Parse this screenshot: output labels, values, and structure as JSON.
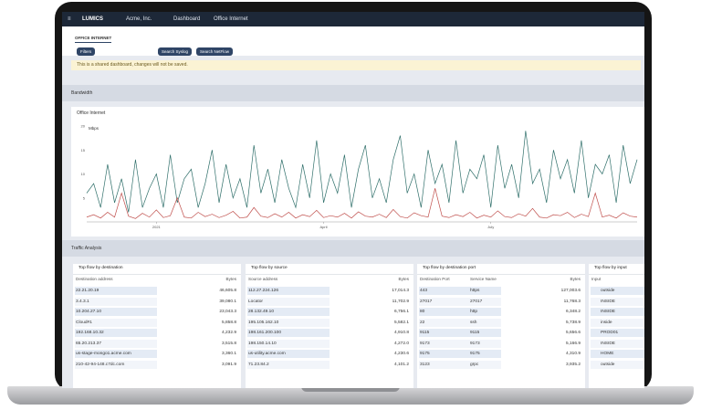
{
  "nav": {
    "brand": "LUMICS",
    "org": "Acme, Inc.",
    "menu": "Dashboard",
    "page": "Office Internet"
  },
  "tab": "OFFICE INTERNET",
  "buttons": [
    "Filters",
    "Search Syslog",
    "Search NetFlow"
  ],
  "banner": "This is a shared dashboard, changes will not be saved.",
  "sections": [
    "Bandwidth",
    "Traffic Analysis"
  ],
  "chart_data": {
    "type": "line",
    "title": "Office Internet",
    "y_label": "Mbps",
    "ylim": [
      0,
      20
    ],
    "yticks": [
      5,
      10,
      15,
      20
    ],
    "xlim": [
      0,
      79
    ],
    "xticks": [
      {
        "value": 10,
        "label": "2021"
      },
      {
        "value": 34,
        "label": "April"
      },
      {
        "value": 58,
        "label": "July"
      }
    ],
    "grid": false,
    "series": [
      {
        "color": "#2f6f6a",
        "values": [
          6,
          8,
          3,
          12,
          4,
          9,
          2,
          13,
          3,
          7,
          10,
          3,
          14,
          4,
          9,
          11,
          3,
          8,
          15,
          4,
          12,
          5,
          9,
          3,
          16,
          6,
          11,
          4,
          13,
          7,
          3,
          12,
          5,
          17,
          4,
          10,
          6,
          14,
          3,
          11,
          16,
          5,
          9,
          4,
          13,
          18,
          6,
          10,
          3,
          15,
          8,
          12,
          4,
          17,
          6,
          11,
          9,
          14,
          3,
          16,
          7,
          12,
          5,
          19,
          8,
          11,
          4,
          15,
          9,
          13,
          6,
          17,
          5,
          12,
          10,
          14,
          4,
          16,
          8,
          13
        ]
      },
      {
        "color": "#c0504d",
        "values": [
          1,
          1.5,
          0.8,
          2,
          1,
          6,
          1.2,
          0.7,
          1.8,
          1,
          2.5,
          0.9,
          1.3,
          5,
          1,
          0.8,
          2,
          1.1,
          1.6,
          0.9,
          1.4,
          2.2,
          0.8,
          1,
          3,
          1.2,
          0.9,
          1.7,
          1,
          2,
          0.8,
          1.5,
          1.1,
          2.4,
          0.9,
          1.3,
          1,
          1.8,
          0.8,
          2.1,
          1.2,
          1,
          1.6,
          0.9,
          2.6,
          1.1,
          0.8,
          1.9,
          1.3,
          1,
          7,
          1.2,
          0.9,
          1.5,
          1.1,
          2,
          0.8,
          1.4,
          1,
          2.3,
          1.1,
          0.9,
          1.7,
          1.2,
          2.8,
          1,
          0.8,
          1.5,
          1.3,
          2,
          0.9,
          1.6,
          1.1,
          6,
          1,
          1.4,
          0.8,
          1.9,
          1.2,
          1
        ]
      }
    ]
  },
  "tables": [
    {
      "title": "Top flow by destination",
      "columns": [
        "Destination address",
        "Bytes"
      ],
      "rows": [
        [
          "22.21.20.19",
          "46,605.8"
        ],
        [
          "3.4.3.1",
          "39,080.1"
        ],
        [
          "10.204.27.10",
          "23,043.3"
        ],
        [
          "Cloud#1",
          "5,858.8"
        ],
        [
          "192.168.10.32",
          "4,232.9"
        ],
        [
          "65.20.213.37",
          "3,515.8"
        ],
        [
          "us-stage-mongo1.acme.com",
          "3,360.1"
        ],
        [
          "210-42-94-148.c7dc.com",
          "3,091.9"
        ]
      ]
    },
    {
      "title": "Top flow by source",
      "columns": [
        "Source address",
        "Bytes"
      ],
      "rows": [
        [
          "112.27.224.126",
          "17,014.3"
        ],
        [
          "Locator",
          "11,702.9"
        ],
        [
          "28.132.49.10",
          "6,756.1"
        ],
        [
          "195.105.162.10",
          "5,582.1"
        ],
        [
          "198.161.200.100",
          "4,910.8"
        ],
        [
          "198.150.14.10",
          "4,272.0"
        ],
        [
          "us-utility.acme.com",
          "4,230.6"
        ],
        [
          "71.23.84.2",
          "4,101.2"
        ]
      ]
    },
    {
      "title": "Top flow by destination port",
      "columns": [
        "Destination Port",
        "Service Name",
        "Bytes"
      ],
      "rows": [
        [
          "443",
          "https",
          "127,003.6"
        ],
        [
          "27017",
          "27017",
          "11,768.3"
        ],
        [
          "80",
          "http",
          "6,348.2"
        ],
        [
          "22",
          "ssh",
          "5,738.9"
        ],
        [
          "9115",
          "9115",
          "5,656.6"
        ],
        [
          "9173",
          "9173",
          "5,166.9"
        ],
        [
          "9175",
          "9175",
          "4,310.9"
        ],
        [
          "3123",
          "grpc",
          "3,935.2"
        ]
      ]
    },
    {
      "title": "Top flow by input",
      "columns": [
        "Input"
      ],
      "rows": [
        [
          "outside"
        ],
        [
          "INSIDE"
        ],
        [
          "INSIDE"
        ],
        [
          "inside"
        ],
        [
          "PROD01"
        ],
        [
          "INSIDE"
        ],
        [
          "HOME"
        ],
        [
          "outside"
        ]
      ]
    }
  ]
}
